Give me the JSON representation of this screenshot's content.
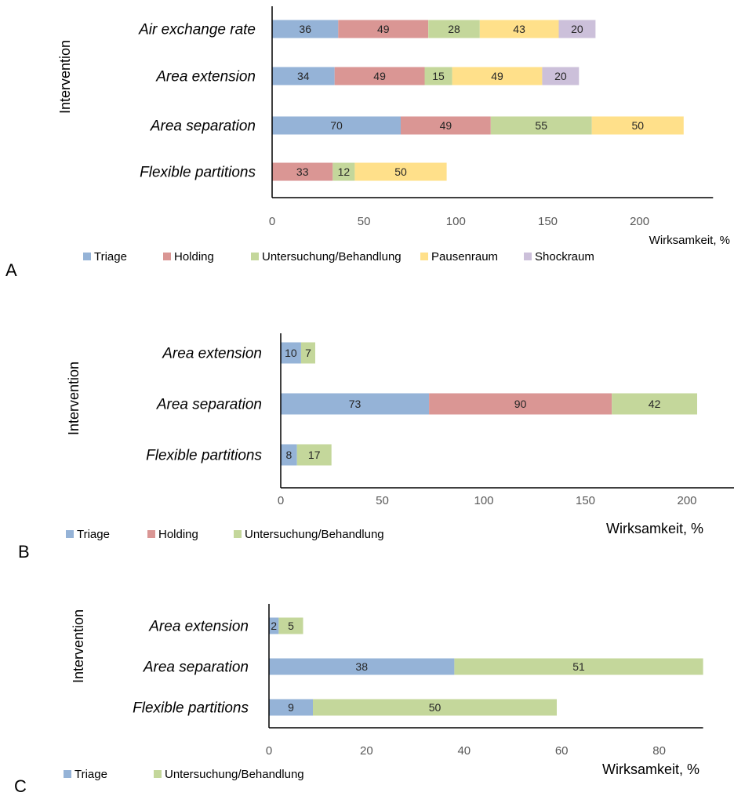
{
  "colors": {
    "Triage": "#95b3d7",
    "Holding": "#da9694",
    "Untersuchung/Behandlung": "#c4d79b",
    "Pausenraum": "#ffe08a",
    "Shockraum": "#ccc0da",
    "axis": "#000000",
    "tick_text": "#595959",
    "text": "#000000"
  },
  "chart_data": [
    {
      "type": "bar",
      "orientation": "horizontal",
      "stacked": true,
      "panel_label": "A",
      "ylabel": "Intervention",
      "xlabel": "Wirksamkeit, %",
      "xlim": [
        0,
        240
      ],
      "xticks": [
        0,
        50,
        100,
        150,
        200
      ],
      "categories": [
        "Air exchange rate",
        "Area extension",
        "Area separation",
        "Flexible partitions"
      ],
      "series": [
        {
          "name": "Triage",
          "values": [
            36,
            34,
            70,
            0
          ]
        },
        {
          "name": "Holding",
          "values": [
            49,
            49,
            49,
            33
          ]
        },
        {
          "name": "Untersuchung/Behandlung",
          "values": [
            28,
            15,
            55,
            12
          ]
        },
        {
          "name": "Pausenraum",
          "values": [
            43,
            49,
            50,
            50
          ]
        },
        {
          "name": "Shockraum",
          "values": [
            20,
            20,
            0,
            0
          ]
        }
      ],
      "legend_position": "bottom"
    },
    {
      "type": "bar",
      "orientation": "horizontal",
      "stacked": true,
      "panel_label": "B",
      "ylabel": "Intervention",
      "xlabel": "Wirksamkeit, %",
      "xlim": [
        0,
        225
      ],
      "xticks": [
        0,
        50,
        100,
        150,
        200
      ],
      "categories": [
        "Area extension",
        "Area separation",
        "Flexible partitions"
      ],
      "series": [
        {
          "name": "Triage",
          "values": [
            10,
            73,
            8
          ]
        },
        {
          "name": "Holding",
          "values": [
            0,
            90,
            0
          ]
        },
        {
          "name": "Untersuchung/Behandlung",
          "values": [
            7,
            42,
            17
          ]
        }
      ],
      "legend_position": "bottom"
    },
    {
      "type": "bar",
      "orientation": "horizontal",
      "stacked": true,
      "panel_label": "C",
      "ylabel": "Intervention",
      "xlabel": "Wirksamkeit, %",
      "xlim": [
        0,
        89
      ],
      "xticks": [
        0,
        20,
        40,
        60,
        80
      ],
      "categories": [
        "Area extension",
        "Area separation",
        "Flexible partitions"
      ],
      "series": [
        {
          "name": "Triage",
          "values": [
            2,
            38,
            9
          ]
        },
        {
          "name": "Untersuchung/Behandlung",
          "values": [
            5,
            51,
            50
          ]
        }
      ],
      "legend_position": "bottom"
    }
  ]
}
